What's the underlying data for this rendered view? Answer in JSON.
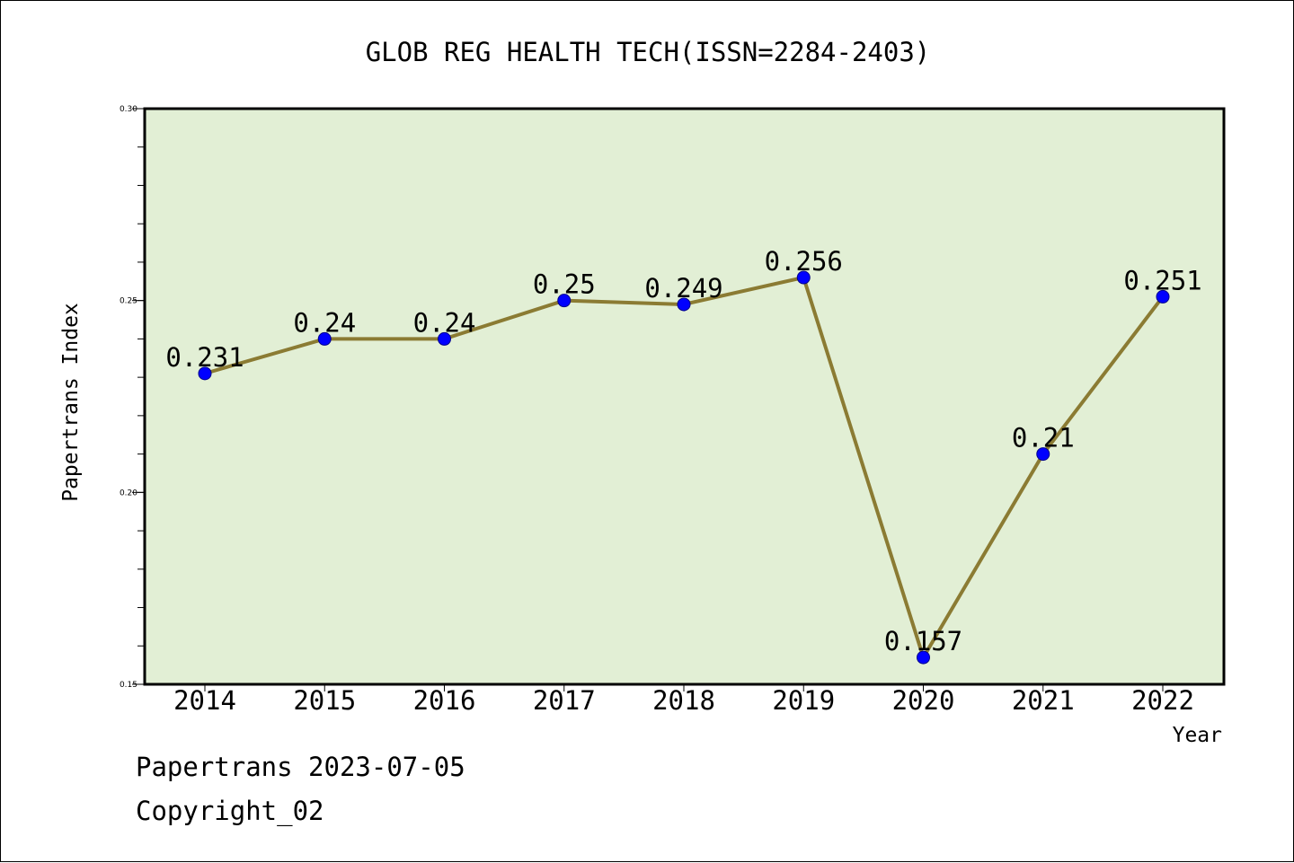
{
  "chart_data": {
    "type": "line",
    "title": "GLOB REG HEALTH TECH(ISSN=2284-2403)",
    "xlabel": "Year",
    "ylabel": "Papertrans Index",
    "categories": [
      "2014",
      "2015",
      "2016",
      "2017",
      "2018",
      "2019",
      "2020",
      "2021",
      "2022"
    ],
    "values": [
      0.231,
      0.24,
      0.24,
      0.25,
      0.249,
      0.256,
      0.157,
      0.21,
      0.251
    ],
    "data_labels": [
      "0.231",
      "0.24",
      "0.24",
      "0.25",
      "0.249",
      "0.256",
      "0.157",
      "0.21",
      "0.251"
    ],
    "ylim": [
      0.15,
      0.3
    ],
    "yticks": [
      "0.15",
      "0.20",
      "0.25",
      "0.30"
    ],
    "y_minor_step": 0.01,
    "grid": false,
    "legend": "none",
    "colors": {
      "plot_background": "#e2efd5",
      "line": "#8b7b33",
      "marker": "#0000ff",
      "axis": "#000000"
    }
  },
  "footer": {
    "date_text": "Papertrans 2023-07-05",
    "copyright_text": "Copyright_02"
  }
}
